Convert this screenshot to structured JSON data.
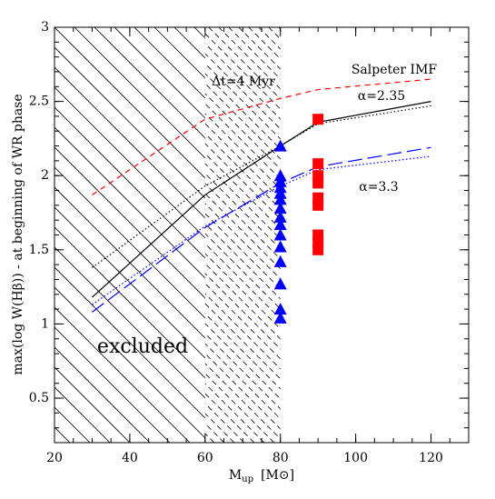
{
  "chart_data": {
    "type": "line",
    "xlabel": {
      "main": "M",
      "sub": "up",
      "unit": "[M⊙]"
    },
    "ylabel": "max(log W(Hβ))  - at beginning of WR phase",
    "xlim": [
      20,
      130
    ],
    "ylim": [
      0.2,
      3
    ],
    "xticks": [
      20,
      40,
      60,
      80,
      100,
      120
    ],
    "yticks": [
      0.5,
      1,
      1.5,
      2,
      2.5,
      3
    ],
    "annotations": [
      "Δt=4 Myr",
      "Salpeter IMF",
      "α=2.35",
      "α=3.3",
      "excluded"
    ],
    "series": [
      {
        "color": "#ff0000",
        "style": "dashed",
        "x": [
          30,
          60,
          80,
          90,
          120
        ],
        "values": [
          1.87,
          2.38,
          2.52,
          2.58,
          2.65
        ]
      },
      {
        "color": "#000000",
        "style": "solid",
        "x": [
          30,
          60,
          80,
          90,
          120
        ],
        "values": [
          1.18,
          1.87,
          2.2,
          2.36,
          2.5
        ]
      },
      {
        "color": "#000000",
        "style": "dotted",
        "x": [
          30,
          60,
          80,
          90,
          120
        ],
        "values": [
          1.38,
          1.93,
          2.2,
          2.35,
          2.47
        ]
      },
      {
        "color": "#0000ff",
        "style": "longdash",
        "x": [
          30,
          60,
          80,
          90,
          120
        ],
        "values": [
          1.08,
          1.65,
          1.95,
          2.06,
          2.19
        ]
      },
      {
        "color": "#0000ff",
        "style": "dotted",
        "x": [
          30,
          60,
          80,
          90,
          120
        ],
        "values": [
          1.13,
          1.66,
          1.93,
          2.04,
          2.13
        ]
      }
    ],
    "markers": [
      {
        "marker": "triangle",
        "color": "#0000ff",
        "x": [
          80,
          80,
          80,
          80,
          80,
          80,
          80,
          80,
          80,
          80,
          80,
          80,
          80,
          80,
          80
        ],
        "values": [
          2.2,
          2.0,
          1.96,
          1.92,
          1.88,
          1.84,
          1.78,
          1.72,
          1.67,
          1.6,
          1.52,
          1.42,
          1.27,
          1.1,
          1.04
        ]
      },
      {
        "marker": "square",
        "color": "#ff0000",
        "x": [
          90,
          90,
          90,
          90,
          90,
          90,
          90,
          90,
          90
        ],
        "values": [
          2.38,
          2.08,
          2.0,
          1.95,
          1.85,
          1.8,
          1.6,
          1.55,
          1.5
        ]
      }
    ]
  }
}
